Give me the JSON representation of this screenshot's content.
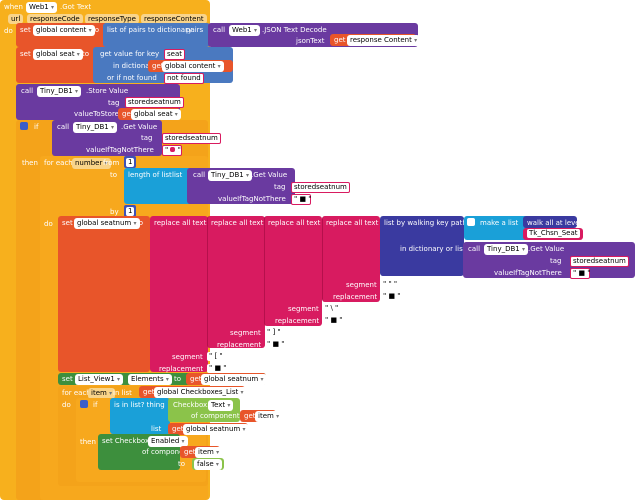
{
  "event": {
    "when": "when",
    "component": "Web1",
    "name": ".Got Text",
    "params": [
      "url",
      "responseCode",
      "responseType",
      "responseContent"
    ],
    "do": "do"
  },
  "set1": {
    "set": "set",
    "var": "global content",
    "to": "to",
    "func": "list of pairs to dictionary",
    "pairs": "pairs",
    "call": "call",
    "comp": "Web1",
    "method": ".JSON Text Decode",
    "jsonText": "jsonText",
    "get": "get",
    "arg": "response Content"
  },
  "set2": {
    "set": "set",
    "var": "global seat",
    "to": "to",
    "func": "get value for key",
    "key": "seat",
    "inDict": "in dictionary",
    "get": "get",
    "dictVar": "global content",
    "notFound": "or if not found",
    "notFoundVal": "not found"
  },
  "store": {
    "call": "call",
    "comp": "Tiny_DB1",
    "method": ".Store Value",
    "tag": "tag",
    "tagVal": "storedseatnum",
    "valueToStore": "valueToStore",
    "get": "get",
    "var": "global seat"
  },
  "if1": {
    "if": "if",
    "call": "call",
    "comp": "Tiny_DB1",
    "method": ".Get Value",
    "tag": "tag",
    "tagVal": "storedseatnum",
    "valueIfNotThere": "valueIfTagNotThere",
    "then": "then"
  },
  "forNum": {
    "forEach": "for each",
    "var": "number",
    "from": "from",
    "fromVal": "1",
    "to": "to",
    "len": "length of list",
    "list": "list",
    "call": "call",
    "comp": "Tiny_DB1",
    "method": ".Get Value",
    "tag": "tag",
    "tagVal": "storedseatnum",
    "vnt": "valueIfTagNotThere",
    "by": "by",
    "byVal": "1",
    "do": "do"
  },
  "set3": {
    "set": "set",
    "var": "global seatnum",
    "to": "to",
    "replace": "replace all text",
    "walk": "list by walking key path",
    "makeList": "make a list",
    "walkAll": "walk all at level",
    "key": "Tk_Chsn_Seat",
    "inDict": "in dictionary or list",
    "call": "call",
    "comp": "Tiny_DB1",
    "method": ".Get Value",
    "tag": "tag",
    "tagVal": "storedseatnum",
    "vnt": "valueIfTagNotThere",
    "segment": "segment",
    "replacement": "replacement",
    "chars": [
      "\"",
      "\\",
      "]",
      "["
    ]
  },
  "setList": {
    "set": "set",
    "comp": "List_View1",
    "prop": "Elements",
    "to": "to",
    "get": "get",
    "var": "global seatnum"
  },
  "forItem": {
    "forEach": "for each",
    "var": "item",
    "inList": "in list",
    "get": "get",
    "listVar": "global Checkboxes_List",
    "do": "do"
  },
  "if2": {
    "if": "if",
    "isIn": "is in list? thing",
    "checkbox": "Checkbox.",
    "prop": "Text",
    "ofComp": "of component",
    "get": "get",
    "itemVar": "item",
    "list": "list",
    "listVar": "global seatnum",
    "then": "then"
  },
  "setCb": {
    "set": "set Checkbox.",
    "prop": "Enabled",
    "ofComp": "of component",
    "get": "get",
    "itemVar": "item",
    "to": "to",
    "val": "false"
  }
}
